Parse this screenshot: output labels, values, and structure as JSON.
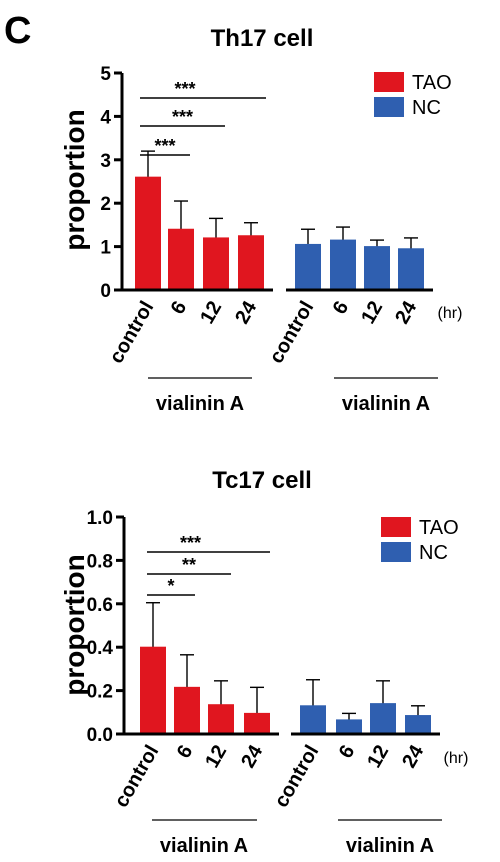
{
  "panel_label": "C",
  "colors": {
    "TAO": "#e0161f",
    "NC": "#2f5fb0",
    "ink": "#000000"
  },
  "chart_data": [
    {
      "type": "bar",
      "title": "Th17 cell",
      "ylabel": "proportion",
      "unit_label": "(hr)",
      "group_label": "vialinin A",
      "ylim": [
        0,
        5
      ],
      "yticks": [
        "0",
        "1",
        "2",
        "3",
        "4",
        "5"
      ],
      "categories": [
        "control",
        "6",
        "12",
        "24"
      ],
      "legend": [
        "TAO",
        "NC"
      ],
      "series": [
        {
          "name": "TAO",
          "values": [
            2.6,
            1.4,
            1.2,
            1.25
          ],
          "errors": [
            0.6,
            0.65,
            0.45,
            0.3
          ]
        },
        {
          "name": "NC",
          "values": [
            1.05,
            1.15,
            1.0,
            0.95
          ],
          "errors": [
            0.35,
            0.3,
            0.15,
            0.25
          ]
        }
      ],
      "significance": [
        {
          "from": "control",
          "to": "6",
          "label": "***"
        },
        {
          "from": "control",
          "to": "12",
          "label": "***"
        },
        {
          "from": "control",
          "to": "24",
          "label": "***"
        }
      ]
    },
    {
      "type": "bar",
      "title": "Tc17 cell",
      "ylabel": "proportion",
      "unit_label": "(hr)",
      "group_label": "vialinin A",
      "ylim": [
        0,
        1.0
      ],
      "yticks": [
        "0.0",
        "0.2",
        "0.4",
        "0.6",
        "0.8",
        "1.0"
      ],
      "categories": [
        "control",
        "6",
        "12",
        "24"
      ],
      "legend": [
        "TAO",
        "NC"
      ],
      "series": [
        {
          "name": "TAO",
          "values": [
            0.4,
            0.215,
            0.135,
            0.095
          ],
          "errors": [
            0.205,
            0.15,
            0.11,
            0.12
          ]
        },
        {
          "name": "NC",
          "values": [
            0.13,
            0.065,
            0.14,
            0.085
          ],
          "errors": [
            0.12,
            0.03,
            0.105,
            0.045
          ]
        }
      ],
      "significance": [
        {
          "from": "control",
          "to": "6",
          "label": "*"
        },
        {
          "from": "control",
          "to": "12",
          "label": "**"
        },
        {
          "from": "control",
          "to": "24",
          "label": "***"
        }
      ]
    }
  ]
}
